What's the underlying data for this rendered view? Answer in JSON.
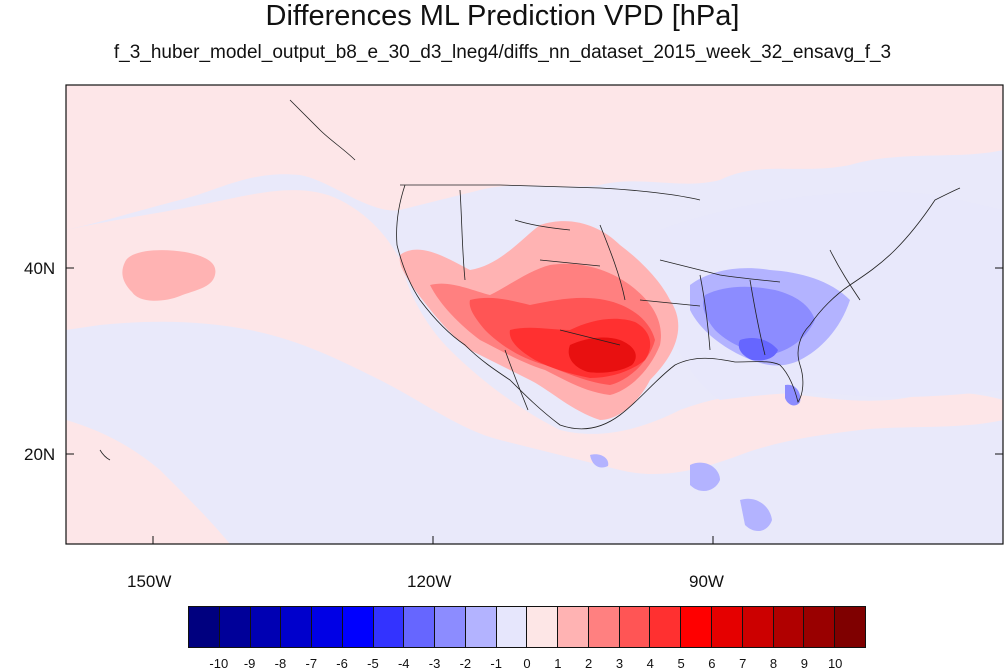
{
  "title": "Differences ML Prediction VPD [hPa]",
  "subtitle": "f_3_huber_model_output_b8_e_30_d3_lneg4/diffs_nn_dataset_2015_week_32_ensavg_f_3",
  "axes": {
    "lon_labels": [
      "150W",
      "120W",
      "90W"
    ],
    "lat_labels": [
      "40N",
      "20N"
    ]
  },
  "colorbar": {
    "labels": [
      "-10",
      "-9",
      "-8",
      "-7",
      "-6",
      "-5",
      "-4",
      "-3",
      "-2",
      "-1",
      "0",
      "1",
      "2",
      "3",
      "4",
      "5",
      "6",
      "7",
      "8",
      "9",
      "10"
    ],
    "colors": [
      "#00007f",
      "#000099",
      "#0000b3",
      "#0000cc",
      "#0000e5",
      "#0000ff",
      "#3333ff",
      "#6666ff",
      "#8c8cff",
      "#b3b3ff",
      "#e6e6fc",
      "#fde6e6",
      "#ffb3b3",
      "#ff8080",
      "#ff5555",
      "#ff3030",
      "#ff0000",
      "#e50000",
      "#cc0000",
      "#b00000",
      "#990000",
      "#7f0000"
    ]
  },
  "colors": {
    "ocean_bg": "#e9e9fa",
    "light_positive": "#fde6e8",
    "light_negative": "#e8e8fb"
  }
}
